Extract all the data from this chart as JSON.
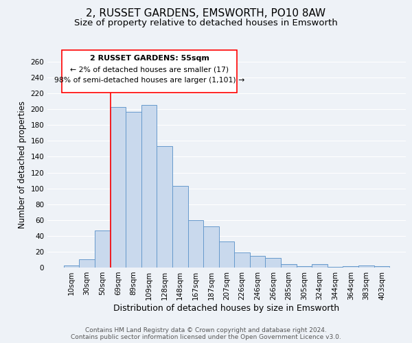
{
  "title": "2, RUSSET GARDENS, EMSWORTH, PO10 8AW",
  "subtitle": "Size of property relative to detached houses in Emsworth",
  "xlabel": "Distribution of detached houses by size in Emsworth",
  "ylabel": "Number of detached properties",
  "categories": [
    "10sqm",
    "30sqm",
    "50sqm",
    "69sqm",
    "89sqm",
    "109sqm",
    "128sqm",
    "148sqm",
    "167sqm",
    "187sqm",
    "207sqm",
    "226sqm",
    "246sqm",
    "266sqm",
    "285sqm",
    "305sqm",
    "324sqm",
    "344sqm",
    "364sqm",
    "383sqm",
    "403sqm"
  ],
  "values": [
    3,
    10,
    47,
    203,
    197,
    205,
    153,
    103,
    60,
    52,
    33,
    19,
    15,
    12,
    4,
    2,
    4,
    1,
    2,
    3,
    2
  ],
  "bar_color": "#c9d9ed",
  "bar_edge_color": "#6699cc",
  "red_line_index": 2,
  "ylim": [
    0,
    260
  ],
  "yticks": [
    0,
    20,
    40,
    60,
    80,
    100,
    120,
    140,
    160,
    180,
    200,
    220,
    240,
    260
  ],
  "annotation_title": "2 RUSSET GARDENS: 55sqm",
  "annotation_line1": "← 2% of detached houses are smaller (17)",
  "annotation_line2": "98% of semi-detached houses are larger (1,101) →",
  "footer1": "Contains HM Land Registry data © Crown copyright and database right 2024.",
  "footer2": "Contains public sector information licensed under the Open Government Licence v3.0.",
  "background_color": "#eef2f7",
  "grid_color": "#ffffff",
  "title_fontsize": 11,
  "subtitle_fontsize": 9.5,
  "xlabel_fontsize": 9,
  "ylabel_fontsize": 8.5,
  "tick_fontsize": 7.5,
  "footer_fontsize": 6.5
}
